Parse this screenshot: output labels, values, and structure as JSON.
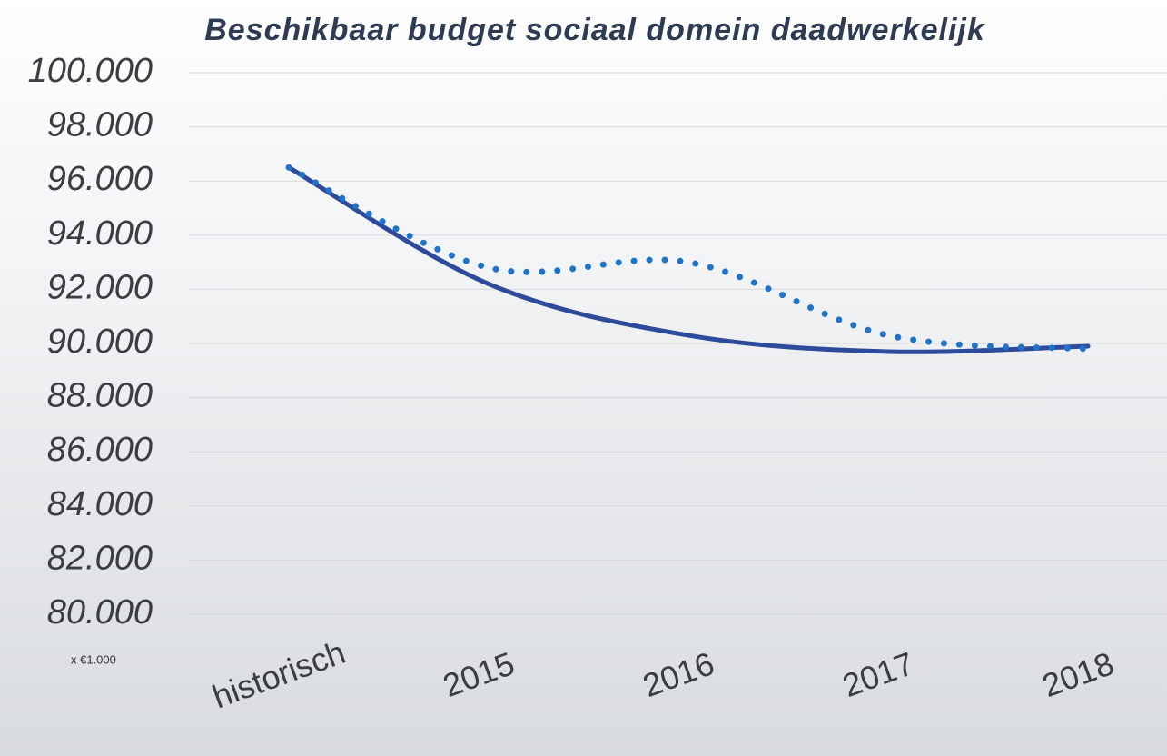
{
  "chart_data": {
    "type": "line",
    "title": "Beschikbaar budget sociaal domein daadwerkelijk",
    "unit_note": "x €1.000",
    "categories": [
      "historisch",
      "2015",
      "2016",
      "2017",
      "2018"
    ],
    "series": [
      {
        "color": "#2e4a9a",
        "style": "solid",
        "values": [
          96500,
          92200,
          90300,
          89700,
          89900
        ]
      },
      {
        "color": "#1f73c8",
        "style": "dotted",
        "values": [
          96500,
          92800,
          93000,
          90300,
          89800
        ]
      }
    ],
    "ylim": [
      80000,
      100000
    ],
    "yticks": [
      {
        "value": 80000,
        "label": "80.000"
      },
      {
        "value": 82000,
        "label": "82.000"
      },
      {
        "value": 84000,
        "label": "84.000"
      },
      {
        "value": 86000,
        "label": "86.000"
      },
      {
        "value": 88000,
        "label": "88.000"
      },
      {
        "value": 90000,
        "label": "90.000"
      },
      {
        "value": 92000,
        "label": "92.000"
      },
      {
        "value": 94000,
        "label": "94.000"
      },
      {
        "value": 96000,
        "label": "96.000"
      },
      {
        "value": 98000,
        "label": "98.000"
      },
      {
        "value": 100000,
        "label": "100.000"
      }
    ],
    "grid": true
  }
}
